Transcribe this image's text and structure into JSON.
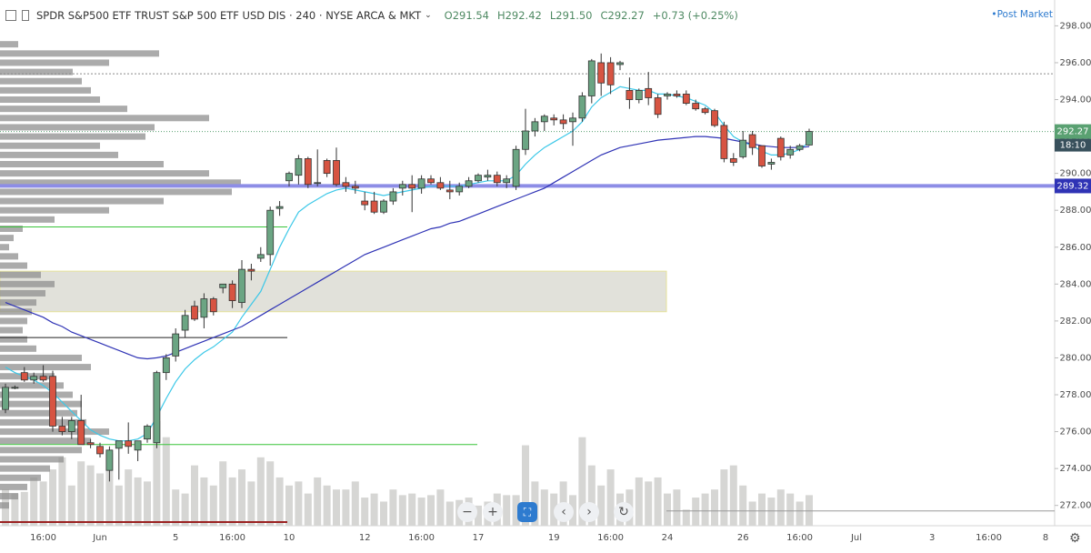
{
  "chart_data": {
    "type": "candlestick",
    "title": "SPDR S&P500 ETF TRUST S&P 500 ETF USD DIS · 240 · NYSE ARCA & MKT",
    "last_bar": {
      "values": [
        291.54,
        292.42,
        291.5,
        292.27
      ],
      "value_labels": [
        "O291.54",
        "H292.42",
        "L291.50",
        "C292.27"
      ]
    },
    "change": "+0.73 (+0.25%)",
    "post_market": "Post Market",
    "up_color": "#6ba583",
    "down_color": "#d75442",
    "categories": [
      null,
      null,
      null,
      null,
      "16:00",
      null,
      null,
      null,
      null,
      null,
      "Jun",
      null,
      null,
      null,
      null,
      null,
      null,
      null,
      "5",
      null,
      null,
      null,
      null,
      null,
      "16:00",
      null,
      null,
      null,
      null,
      null,
      "10",
      null,
      null,
      null,
      null,
      null,
      null,
      null,
      "12",
      null,
      null,
      null,
      null,
      null,
      "16:00",
      null,
      null,
      null,
      null,
      null,
      "17",
      null,
      null,
      null,
      null,
      null,
      null,
      null,
      "19",
      null,
      null,
      null,
      null,
      null,
      "16:00",
      null,
      null,
      null,
      null,
      null,
      "24",
      null,
      null,
      null,
      null,
      null,
      null,
      null,
      "26",
      null,
      null,
      null,
      null,
      null,
      "16:00",
      null,
      null,
      null,
      null,
      null,
      "Jul",
      null,
      null,
      null,
      null,
      null,
      null,
      null,
      "3",
      null,
      null,
      null,
      null,
      null,
      "16:00",
      null,
      null,
      null,
      null,
      null,
      "8",
      null
    ],
    "open": [
      277.2,
      278.4,
      279.2,
      278.8,
      279.0,
      279.0,
      276.3,
      276.0,
      276.6,
      275.4,
      275.2,
      273.9,
      275.1,
      275.5,
      275.0,
      275.6,
      275.4,
      279.2,
      280.1,
      281.5,
      282.8,
      282.2,
      283.2,
      283.8,
      284.0,
      283.0,
      284.8,
      285.4,
      285.6,
      288.1,
      289.6,
      289.9,
      290.8,
      289.5,
      290.7,
      290.7,
      289.5,
      289.3,
      288.5,
      288.5,
      287.9,
      288.5,
      289.2,
      289.4,
      289.2,
      289.7,
      289.5,
      289.1,
      289.0,
      289.3,
      289.6,
      289.8,
      289.9,
      289.5,
      289.3,
      291.3,
      292.3,
      292.8,
      293.0,
      292.9,
      292.8,
      293.0,
      294.2,
      296.0,
      296.0,
      295.9,
      294.5,
      294.0,
      294.6,
      294.1,
      294.2,
      294.3,
      294.3,
      293.8,
      293.5,
      293.4,
      292.6,
      290.8,
      290.9,
      292.1,
      291.5,
      290.5,
      291.9,
      291.0,
      291.3,
      291.54,
      null,
      null,
      null,
      null,
      null,
      null,
      null,
      null,
      null,
      null,
      null,
      null,
      null,
      null,
      null,
      null,
      null,
      null,
      null,
      null,
      null,
      null,
      null,
      null,
      null,
      null
    ],
    "high": [
      278.6,
      278.5,
      279.5,
      279.2,
      279.6,
      279.3,
      276.8,
      276.8,
      278.0,
      275.6,
      275.4,
      275.2,
      275.5,
      276.5,
      275.5,
      276.4,
      279.3,
      280.2,
      281.6,
      282.6,
      283.1,
      283.5,
      283.3,
      284.0,
      284.2,
      285.3,
      285.1,
      286.0,
      288.2,
      288.5,
      290.1,
      291.0,
      290.9,
      291.3,
      290.8,
      291.4,
      289.8,
      289.6,
      289.0,
      289.0,
      288.6,
      289.2,
      289.6,
      289.9,
      289.9,
      289.9,
      289.8,
      289.6,
      289.5,
      289.8,
      290.0,
      290.2,
      290.1,
      289.9,
      291.5,
      293.5,
      293.0,
      293.2,
      293.2,
      293.2,
      293.3,
      294.4,
      296.2,
      296.5,
      296.3,
      296.1,
      295.2,
      294.6,
      295.5,
      294.3,
      294.4,
      294.5,
      294.5,
      294.0,
      293.6,
      293.5,
      292.8,
      291.1,
      292.3,
      292.3,
      291.5,
      290.8,
      292.0,
      291.5,
      291.6,
      292.42,
      null,
      null,
      null,
      null,
      null,
      null,
      null,
      null,
      null,
      null,
      null,
      null,
      null,
      null,
      null,
      null,
      null,
      null,
      null,
      null,
      null,
      null,
      null,
      null,
      null,
      null
    ],
    "low": [
      277.0,
      278.3,
      278.7,
      278.6,
      278.7,
      276.0,
      275.8,
      275.6,
      275.3,
      275.1,
      274.6,
      273.3,
      273.4,
      274.8,
      274.4,
      275.4,
      275.1,
      278.8,
      279.8,
      281.1,
      282.0,
      281.6,
      282.3,
      283.5,
      282.7,
      282.7,
      284.2,
      285.2,
      285.0,
      287.7,
      289.3,
      289.4,
      289.2,
      289.3,
      289.8,
      289.3,
      289.0,
      288.9,
      288.0,
      287.8,
      287.8,
      288.3,
      288.8,
      287.9,
      288.9,
      289.4,
      289.1,
      288.6,
      288.8,
      289.2,
      289.5,
      289.6,
      289.3,
      289.2,
      289.1,
      291.0,
      292.0,
      292.3,
      292.6,
      292.4,
      291.5,
      292.8,
      293.8,
      294.2,
      294.3,
      295.6,
      293.5,
      293.8,
      293.7,
      293.0,
      294.0,
      294.1,
      293.7,
      293.4,
      293.2,
      292.5,
      290.6,
      290.4,
      290.8,
      291.0,
      290.3,
      290.2,
      290.7,
      290.8,
      291.2,
      291.5,
      null,
      null,
      null,
      null,
      null,
      null,
      null,
      null,
      null,
      null,
      null,
      null,
      null,
      null,
      null,
      null,
      null,
      null,
      null,
      null,
      null,
      null,
      null,
      null,
      null,
      null
    ],
    "close": [
      278.4,
      278.4,
      278.8,
      279.0,
      278.8,
      276.3,
      276.0,
      276.6,
      275.3,
      275.3,
      274.8,
      275.0,
      275.5,
      275.2,
      275.5,
      276.3,
      279.2,
      280.0,
      281.3,
      282.3,
      282.1,
      283.2,
      282.5,
      284.0,
      283.1,
      284.8,
      284.7,
      285.6,
      288.0,
      288.2,
      290.0,
      290.8,
      289.4,
      289.5,
      290.0,
      289.4,
      289.3,
      289.2,
      288.3,
      287.9,
      288.5,
      289.0,
      289.4,
      289.2,
      289.7,
      289.5,
      289.2,
      289.0,
      289.3,
      289.6,
      289.9,
      289.9,
      289.5,
      289.7,
      291.3,
      292.3,
      292.8,
      293.1,
      292.9,
      292.7,
      293.0,
      294.2,
      296.1,
      294.9,
      294.8,
      296.0,
      294.0,
      294.5,
      294.1,
      293.2,
      294.3,
      294.2,
      293.8,
      293.5,
      293.3,
      292.6,
      290.8,
      290.6,
      291.8,
      291.4,
      290.4,
      290.6,
      290.9,
      291.3,
      291.5,
      292.27,
      null,
      null,
      null,
      null,
      null,
      null,
      null,
      null,
      null,
      null,
      null,
      null,
      null,
      null,
      null,
      null,
      null,
      null,
      null,
      null,
      null,
      null,
      null,
      null,
      null,
      null
    ],
    "moving_averages": [
      {
        "color": "#3cc8e8",
        "values": [
          279.5,
          279.2,
          279.0,
          278.8,
          278.5,
          278.1,
          277.6,
          277.1,
          276.6,
          276.1,
          275.8,
          275.6,
          275.5,
          275.5,
          275.6,
          275.9,
          276.8,
          277.8,
          278.7,
          279.4,
          279.9,
          280.3,
          280.6,
          281.0,
          281.4,
          282.2,
          282.9,
          283.6,
          284.8,
          286.0,
          287.0,
          287.9,
          288.3,
          288.6,
          288.9,
          289.1,
          289.2,
          289.1,
          289.0,
          288.9,
          288.8,
          288.9,
          289.0,
          289.1,
          289.2,
          289.3,
          289.3,
          289.3,
          289.3,
          289.4,
          289.5,
          289.6,
          289.6,
          289.6,
          289.9,
          290.5,
          291.0,
          291.4,
          291.7,
          292.0,
          292.3,
          292.8,
          293.6,
          294.1,
          294.4,
          294.7,
          294.6,
          294.5,
          294.5,
          294.3,
          294.3,
          294.2,
          294.1,
          293.9,
          293.7,
          293.3,
          292.6,
          292.0,
          291.7,
          291.5,
          291.2,
          291.0,
          291.0,
          291.1,
          291.3,
          291.7,
          null,
          null,
          null,
          null,
          null,
          null,
          null,
          null,
          null,
          null,
          null,
          null,
          null,
          null,
          null,
          null,
          null,
          null,
          null,
          null,
          null,
          null,
          null,
          null,
          null,
          null
        ]
      },
      {
        "color": "#2f33b5",
        "values": [
          283.0,
          282.8,
          282.6,
          282.4,
          282.2,
          281.9,
          281.7,
          281.4,
          281.2,
          281.0,
          280.8,
          280.6,
          280.4,
          280.2,
          280.0,
          279.95,
          280.0,
          280.1,
          280.3,
          280.5,
          280.7,
          280.9,
          281.1,
          281.3,
          281.5,
          281.7,
          282.0,
          282.3,
          282.6,
          282.9,
          283.2,
          283.5,
          283.8,
          284.1,
          284.4,
          284.7,
          285.0,
          285.3,
          285.6,
          285.8,
          286.0,
          286.2,
          286.4,
          286.6,
          286.8,
          287.0,
          287.1,
          287.3,
          287.4,
          287.6,
          287.8,
          288.0,
          288.2,
          288.4,
          288.6,
          288.8,
          289.0,
          289.2,
          289.5,
          289.8,
          290.1,
          290.4,
          290.7,
          291.0,
          291.2,
          291.4,
          291.5,
          291.6,
          291.7,
          291.8,
          291.85,
          291.9,
          291.95,
          292.0,
          292.0,
          291.95,
          291.9,
          291.8,
          291.7,
          291.6,
          291.5,
          291.45,
          291.4,
          291.4,
          291.4,
          291.45,
          null,
          null,
          null,
          null,
          null,
          null,
          null,
          null,
          null,
          null,
          null,
          null,
          null,
          null,
          null,
          null,
          null,
          null,
          null,
          null,
          null,
          null,
          null,
          null,
          null,
          null
        ]
      }
    ],
    "volume": {
      "color": "#cfcfcd",
      "values": [
        45,
        40,
        42,
        60,
        55,
        70,
        85,
        50,
        80,
        75,
        65,
        90,
        50,
        70,
        60,
        55,
        130,
        110,
        45,
        40,
        75,
        60,
        50,
        80,
        60,
        70,
        55,
        85,
        80,
        60,
        50,
        55,
        40,
        60,
        50,
        45,
        45,
        55,
        35,
        40,
        30,
        45,
        38,
        40,
        35,
        38,
        45,
        30,
        32,
        35,
        25,
        30,
        40,
        38,
        38,
        100,
        55,
        45,
        40,
        55,
        38,
        110,
        75,
        50,
        70,
        40,
        45,
        60,
        55,
        60,
        40,
        45,
        20,
        35,
        40,
        45,
        70,
        75,
        50,
        30,
        40,
        35,
        45,
        40,
        30,
        38,
        null,
        null,
        null,
        null,
        null,
        null,
        null,
        null,
        null,
        null,
        null,
        null,
        null,
        null,
        null,
        null,
        null,
        null,
        null,
        null,
        null,
        null,
        null,
        null,
        null,
        null
      ]
    },
    "volume_profile": {
      "color": "#8f8f8f",
      "prices": [
        297.0,
        296.5,
        296.0,
        295.5,
        295.0,
        294.5,
        294.0,
        293.5,
        293.0,
        292.5,
        292.0,
        291.5,
        291.0,
        290.5,
        290.0,
        289.5,
        289.0,
        288.5,
        288.0,
        287.5,
        287.0,
        286.5,
        286.0,
        285.5,
        285.0,
        284.5,
        284.0,
        283.5,
        283.0,
        282.5,
        282.0,
        281.5,
        281.0,
        280.5,
        280.0,
        279.5,
        279.0,
        278.5,
        278.0,
        277.5,
        277.0,
        276.5,
        276.0,
        275.5,
        275.0,
        274.5,
        274.0,
        273.5,
        273.0,
        272.5,
        272.0
      ],
      "values": [
        20,
        175,
        120,
        80,
        90,
        100,
        110,
        140,
        230,
        170,
        160,
        110,
        130,
        180,
        230,
        265,
        255,
        180,
        120,
        60,
        25,
        15,
        10,
        20,
        30,
        45,
        60,
        50,
        40,
        35,
        30,
        25,
        30,
        40,
        90,
        100,
        60,
        70,
        80,
        90,
        85,
        95,
        120,
        100,
        90,
        70,
        55,
        45,
        30,
        20,
        10
      ]
    },
    "zone": {
      "from": 282.5,
      "to": 284.7,
      "color": "#dcdcd4"
    },
    "hlines": [
      {
        "value": 289.32,
        "color": "#8d8de6"
      },
      {
        "value": 295.4,
        "color": "#8a8a8a"
      },
      {
        "value": 287.1,
        "color": "#39c439"
      },
      {
        "value": 281.1,
        "color": "#222222"
      },
      {
        "value": 275.3,
        "color": "#39c439"
      },
      {
        "value": 271.1,
        "color": "#9b2222"
      },
      {
        "value": 271.7,
        "color": "#9a9a9a"
      }
    ],
    "price_line": {
      "value": 292.27,
      "time": "18:10",
      "color": "#5aa172"
    },
    "ylim": [
      270.9,
      299.4
    ],
    "yticks": [
      {
        "value": 272,
        "label": "272.00"
      },
      {
        "value": 274,
        "label": "274.00"
      },
      {
        "value": 276,
        "label": "276.00"
      },
      {
        "value": 278,
        "label": "278.00"
      },
      {
        "value": 280,
        "label": "280.00"
      },
      {
        "value": 282,
        "label": "282.00"
      },
      {
        "value": 284,
        "label": "284.00"
      },
      {
        "value": 286,
        "label": "286.00"
      },
      {
        "value": 288,
        "label": "288.00"
      },
      {
        "value": 290,
        "label": "290.00"
      },
      {
        "value": 292,
        "label": "292.00"
      },
      {
        "value": 294,
        "label": "294.00"
      },
      {
        "value": 296,
        "label": "296.00"
      },
      {
        "value": 298,
        "label": "298.00"
      }
    ]
  }
}
